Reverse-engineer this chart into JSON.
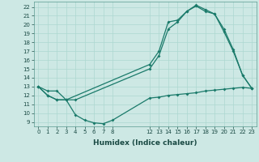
{
  "bg_color": "#cde8e4",
  "grid_color": "#add8d0",
  "line_color": "#1a7a6a",
  "xlabel": "Humidex (Indice chaleur)",
  "ylim": [
    8.5,
    22.6
  ],
  "xlim": [
    -0.5,
    23.5
  ],
  "yticks": [
    9,
    10,
    11,
    12,
    13,
    14,
    15,
    16,
    17,
    18,
    19,
    20,
    21,
    22
  ],
  "xticks": [
    0,
    1,
    2,
    3,
    4,
    5,
    6,
    7,
    8,
    12,
    13,
    14,
    15,
    16,
    17,
    18,
    19,
    20,
    21,
    22,
    23
  ],
  "curve1_x": [
    0,
    1,
    2,
    3,
    12,
    13,
    14,
    15,
    16,
    17,
    18,
    19,
    20,
    21,
    22,
    23
  ],
  "curve1_y": [
    13.0,
    12.5,
    12.5,
    11.5,
    15.5,
    17.0,
    20.3,
    20.5,
    21.5,
    22.2,
    21.7,
    21.2,
    19.5,
    17.2,
    14.3,
    12.8
  ],
  "curve2_x": [
    0,
    1,
    2,
    3,
    4,
    12,
    13,
    14,
    15,
    16,
    17,
    18,
    19,
    20,
    21,
    22,
    23
  ],
  "curve2_y": [
    13.0,
    12.0,
    11.5,
    11.5,
    11.5,
    15.0,
    16.5,
    19.5,
    20.3,
    21.5,
    22.1,
    21.5,
    21.2,
    19.2,
    17.0,
    14.3,
    12.8
  ],
  "curve3_x": [
    0,
    1,
    2,
    3,
    4,
    5,
    6,
    7,
    8,
    12,
    13,
    14,
    15,
    16,
    17,
    18,
    19,
    20,
    21,
    22,
    23
  ],
  "curve3_y": [
    13.0,
    12.0,
    11.5,
    11.5,
    9.8,
    9.2,
    8.9,
    8.8,
    9.2,
    11.7,
    11.8,
    12.0,
    12.1,
    12.2,
    12.3,
    12.5,
    12.6,
    12.7,
    12.8,
    12.9,
    12.8
  ],
  "lw": 0.9,
  "ms": 2.0,
  "tick_fontsize": 5.0,
  "xlabel_fontsize": 6.5
}
